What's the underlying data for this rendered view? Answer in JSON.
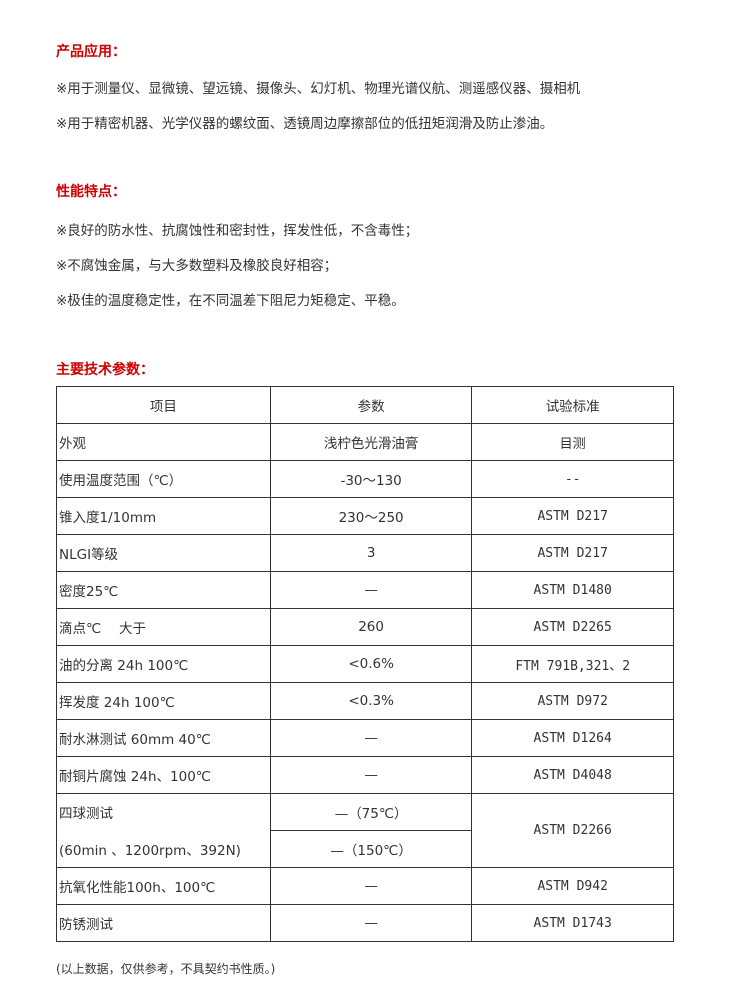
{
  "sections": {
    "application": {
      "title": "产品应用：",
      "items": [
        "※用于测量仪、显微镜、望远镜、摄像头、幻灯机、物理光谱仪航、测遥感仪器、摄相机",
        "※用于精密机器、光学仪器的螺纹面、透镜周边摩擦部位的低扭矩润滑及防止渗油。"
      ]
    },
    "features": {
      "title": "性能特点：",
      "items": [
        "※良好的防水性、抗腐蚀性和密封性，挥发性低，不含毒性；",
        "※不腐蚀金属，与大多数塑料及橡胶良好相容；",
        "※极佳的温度稳定性，在不同温差下阻尼力矩稳定、平稳。"
      ]
    },
    "params": {
      "title": "主要技术参数："
    }
  },
  "table": {
    "headers": [
      "项目",
      "参数",
      "试验标准"
    ],
    "rows": [
      [
        "外观",
        "浅柠色光滑油膏",
        "目测"
      ],
      [
        "使用温度范围（℃）",
        "-30～130",
        "--"
      ],
      [
        "锥入度1/10mm",
        "230～250",
        "ASTM D217"
      ],
      [
        "NLGI等级",
        "3",
        "ASTM D217"
      ],
      [
        "密度25℃",
        "—",
        "ASTM D1480"
      ],
      [
        "滴点℃　 大于",
        "260",
        "ASTM D2265"
      ],
      [
        "油的分离 24h 100℃",
        "<0.6%",
        "FTM 791B,321、2"
      ],
      [
        "挥发度 24h 100℃",
        "<0.3%",
        "ASTM D972"
      ],
      [
        "耐水淋测试 60mm 40℃",
        "—",
        "ASTM D1264"
      ],
      [
        "耐铜片腐蚀 24h、100℃",
        "—",
        "ASTM D4048"
      ]
    ],
    "four_ball": {
      "item_line1": "四球测试",
      "item_line2": "(60min 、1200rpm、392N)",
      "param1": "—（75℃）",
      "param2": "—（150℃）",
      "standard": "ASTM D2266"
    },
    "rows_after": [
      [
        "抗氧化性能100h、100℃",
        "—",
        "ASTM D942"
      ],
      [
        "防锈测试",
        "—",
        "ASTM D1743"
      ]
    ]
  },
  "footnote": "(以上数据，仅供参考，不具契约书性质。)",
  "colors": {
    "heading": "#cc0000",
    "text": "#333333"
  }
}
